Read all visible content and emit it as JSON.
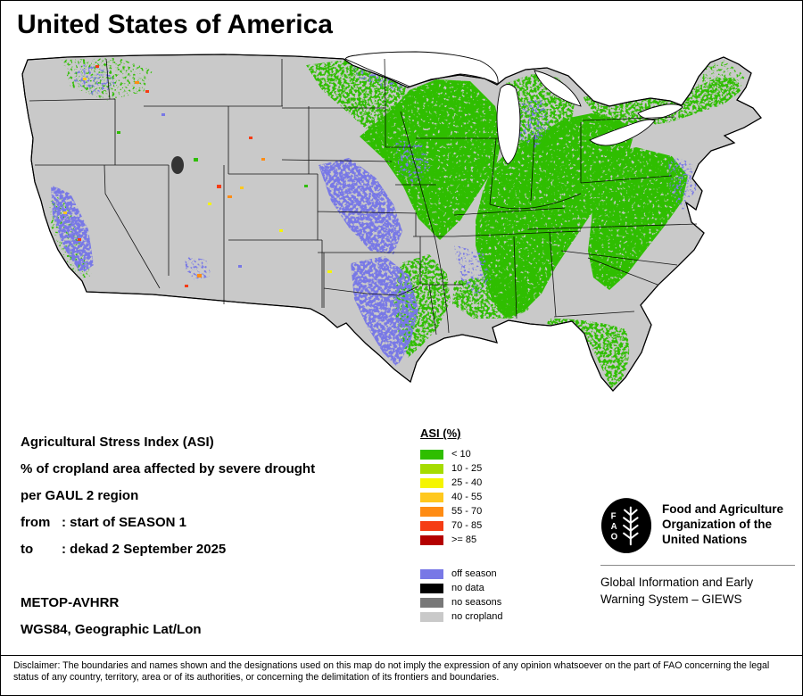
{
  "page": {
    "title": "United States of America"
  },
  "info": {
    "heading": "Agricultural Stress Index (ASI)",
    "subtitle1": "% of cropland area affected by severe drought",
    "subtitle2": "per GAUL 2 region",
    "from_label": "from",
    "from_value": ": start of SEASON 1",
    "to_label": "to",
    "to_value": ": dekad 2 September 2025",
    "sensor": "METOP-AVHRR",
    "projection": "WGS84, Geographic Lat/Lon"
  },
  "legend": {
    "title": "ASI (%)",
    "classes": [
      {
        "label": "< 10",
        "color": "#2fbe00"
      },
      {
        "label": "10 - 25",
        "color": "#a5dc00"
      },
      {
        "label": "25 - 40",
        "color": "#f5f500"
      },
      {
        "label": "40 - 55",
        "color": "#ffc81e"
      },
      {
        "label": "55 - 70",
        "color": "#ff8c14"
      },
      {
        "label": "70 - 85",
        "color": "#f53c14"
      },
      {
        "label": ">= 85",
        "color": "#b40000"
      }
    ],
    "extra": [
      {
        "label": "off season",
        "color": "#7878e6"
      },
      {
        "label": "no data",
        "color": "#000000"
      },
      {
        "label": "no seasons",
        "color": "#787878"
      },
      {
        "label": "no cropland",
        "color": "#c9c9c9"
      }
    ]
  },
  "map": {
    "land_color": "#c9c9c9",
    "water_color": "#ffffff",
    "green": "#2fbe00",
    "blue": "#7878e6"
  },
  "fao": {
    "logo_letters": [
      "F",
      "A",
      "O"
    ],
    "org_name": "Food and Agriculture Organization of the United Nations",
    "giews": "Global Information and Early Warning System – GIEWS"
  },
  "disclaimer": "Disclaimer: The boundaries and names shown and the designations used on this map do not imply the expression of any opinion whatsoever on the part of FAO concerning the legal status of any country, territory, area or of its authorities, or concerning the delimitation of its frontiers and boundaries."
}
